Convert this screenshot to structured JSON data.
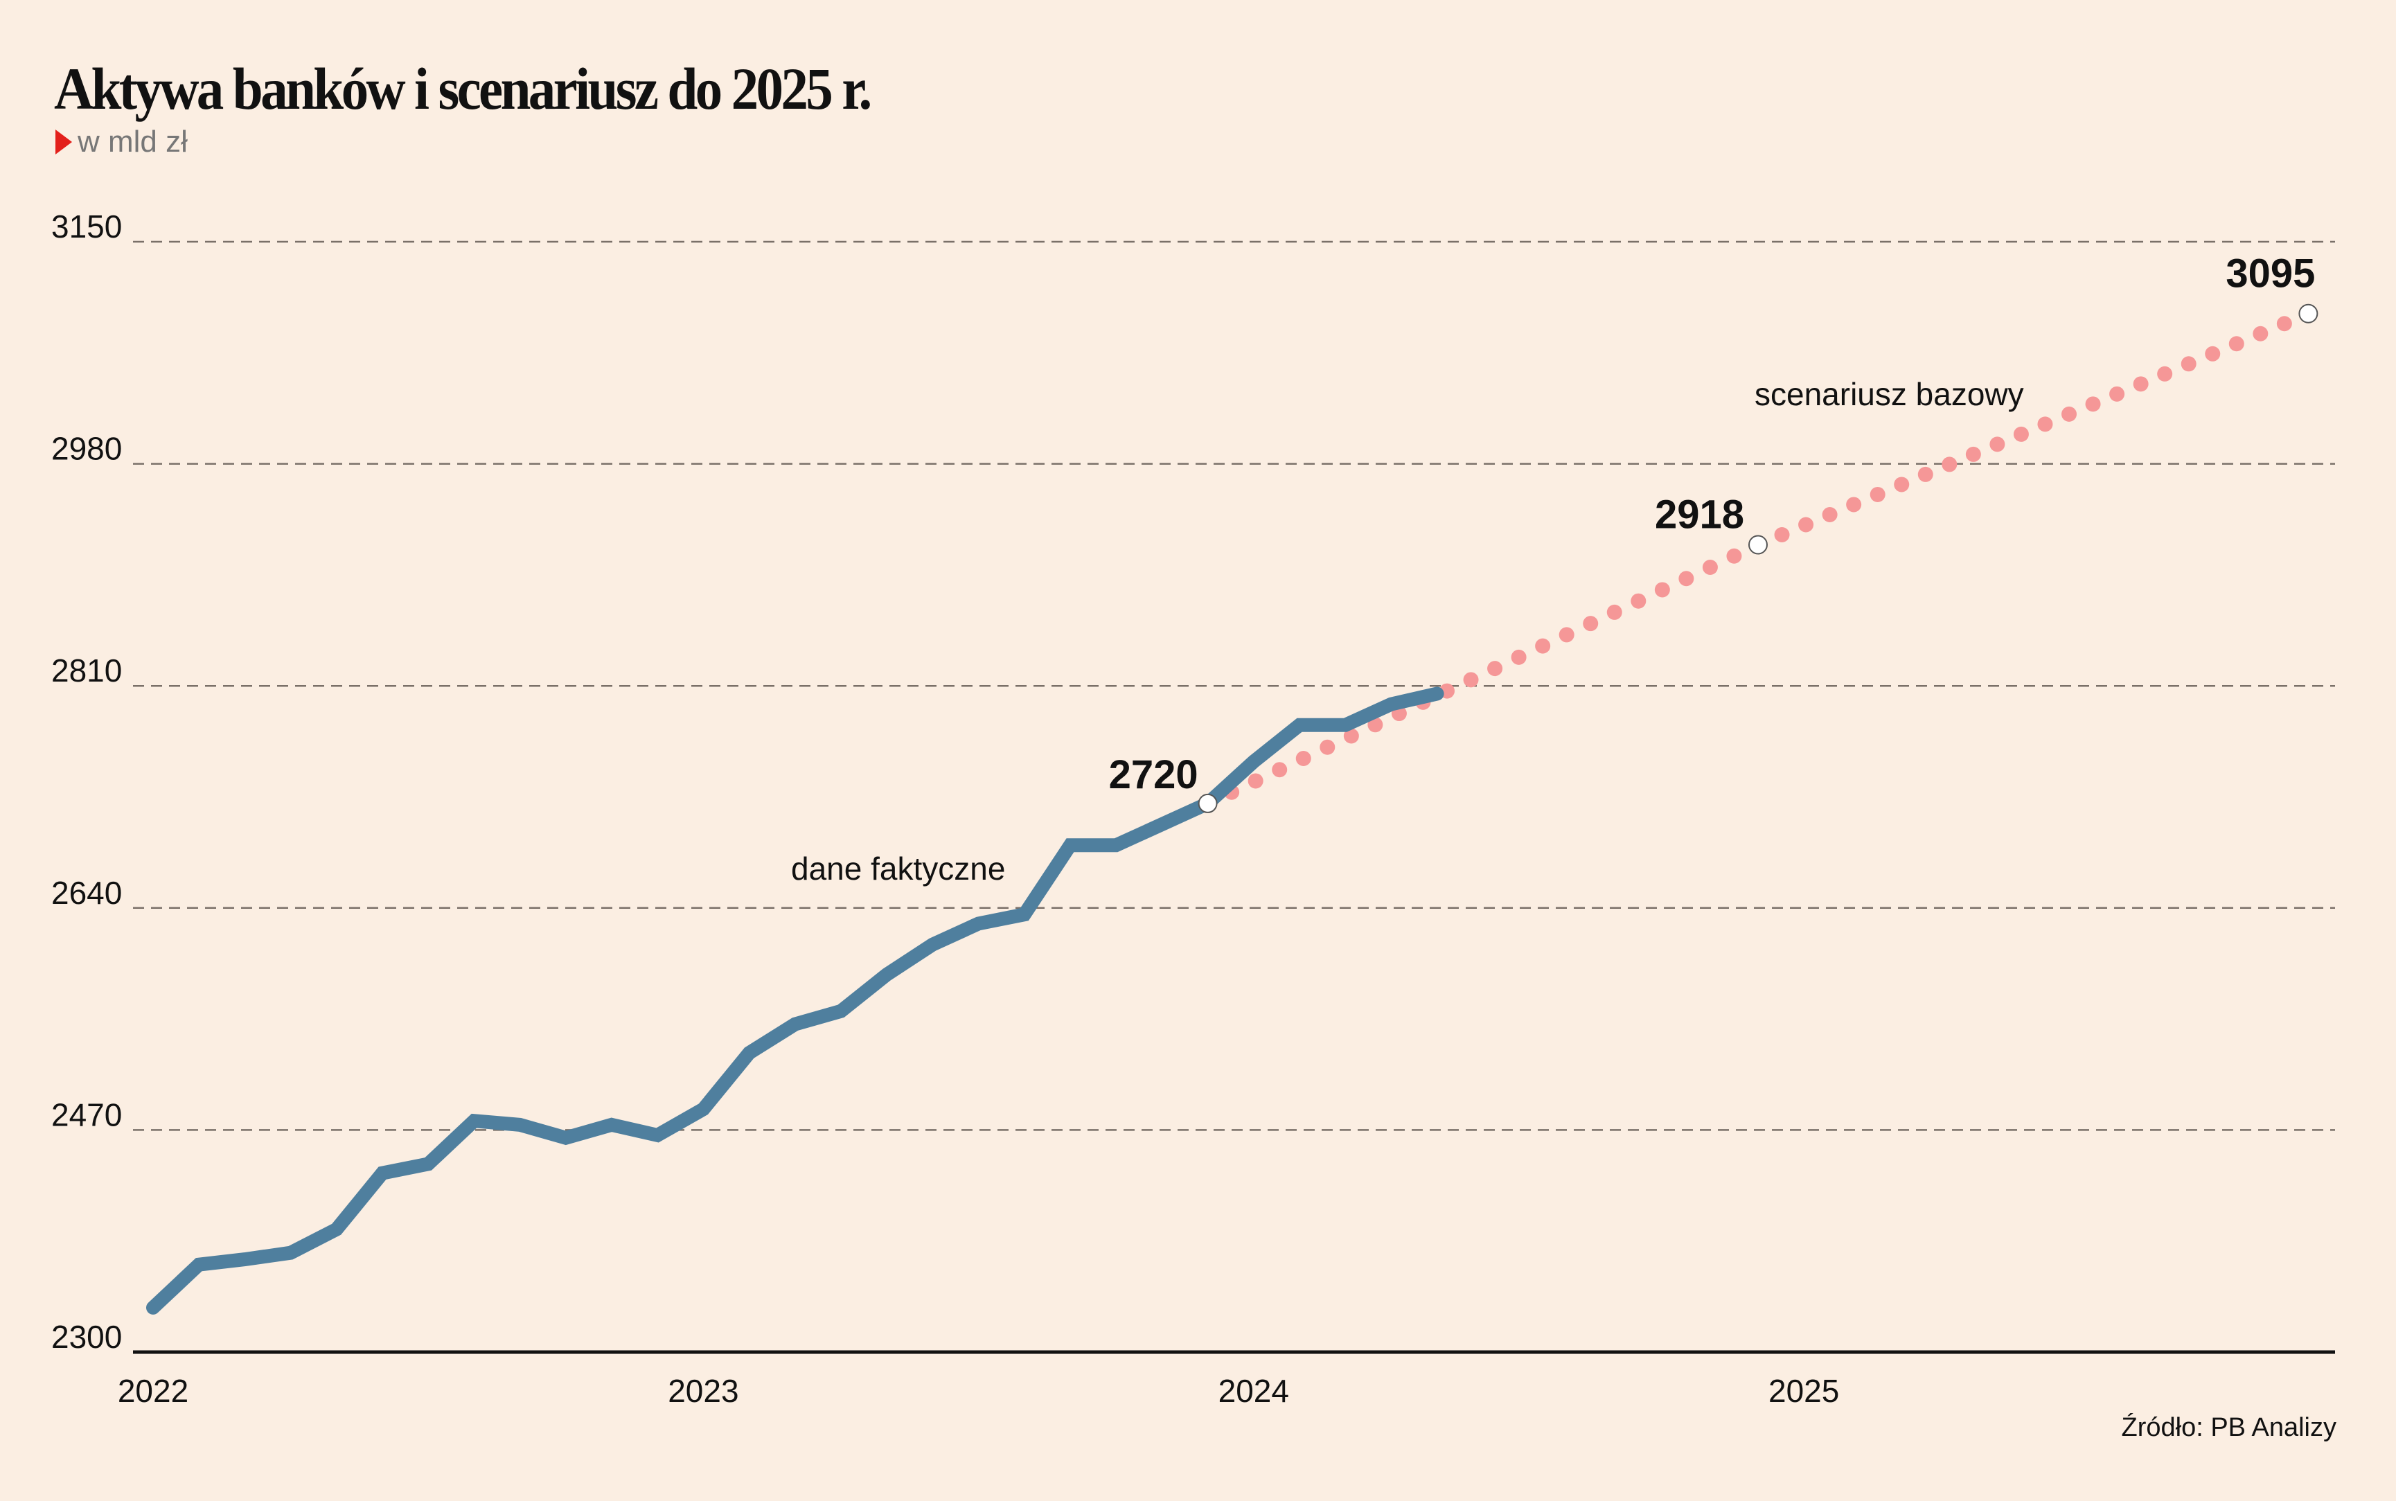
{
  "header": {
    "title": "Aktywa banków i scenariusz do 2025 r.",
    "subtitle": "w mld zł",
    "subtitle_marker_color": "#e3201b"
  },
  "footer": {
    "source": "Źródło: PB Analizy"
  },
  "chart_data": {
    "type": "line",
    "title": "Aktywa banków i scenariusz do 2025 r.",
    "subtitle": "w mld zł",
    "xlabel": "",
    "ylabel": "w mld zł",
    "x_unit": "month",
    "x_start": "2022-01",
    "xlim_months": [
      0,
      47
    ],
    "ylim": [
      2300,
      3150
    ],
    "yticks": [
      2300,
      2470,
      2640,
      2810,
      2980,
      3150
    ],
    "ytick_labels": [
      "2300",
      "2470",
      "2640",
      "2810",
      "2980",
      "3150"
    ],
    "xticks_months": [
      0,
      12,
      24,
      36
    ],
    "xtick_labels": [
      "2022",
      "2023",
      "2024",
      "2025"
    ],
    "grid": "horizontal-dashed",
    "series": [
      {
        "name": "dane faktyczne",
        "style": "solid",
        "color": "#4f7f9e",
        "x_months": [
          0,
          1,
          2,
          3,
          4,
          5,
          6,
          7,
          8,
          9,
          10,
          11,
          12,
          13,
          14,
          15,
          16,
          17,
          18,
          19,
          20,
          21,
          22,
          23,
          24,
          25,
          26,
          27,
          28
        ],
        "values": [
          2334,
          2367,
          2371,
          2376,
          2394,
          2437,
          2444,
          2477,
          2474,
          2464,
          2474,
          2466,
          2486,
          2529,
          2551,
          2561,
          2589,
          2612,
          2628,
          2635,
          2688,
          2688,
          2704,
          2720,
          2752,
          2780,
          2780,
          2796,
          2804
        ]
      },
      {
        "name": "scenariusz bazowy",
        "style": "dotted",
        "color": "#f59797",
        "x_months": [
          23,
          35,
          47
        ],
        "values": [
          2720,
          2918,
          3095
        ]
      }
    ],
    "annotations": [
      {
        "text": "2720",
        "x_month": 23,
        "value": 2720,
        "marker": "open-circle"
      },
      {
        "text": "2918",
        "x_month": 35,
        "value": 2918,
        "marker": "open-circle"
      },
      {
        "text": "3095",
        "x_month": 47,
        "value": 3095,
        "marker": "open-circle"
      },
      {
        "text": "dane faktyczne",
        "series": "dane faktyczne"
      },
      {
        "text": "scenariusz bazowy",
        "series": "scenariusz bazowy"
      }
    ],
    "legend": "none"
  }
}
